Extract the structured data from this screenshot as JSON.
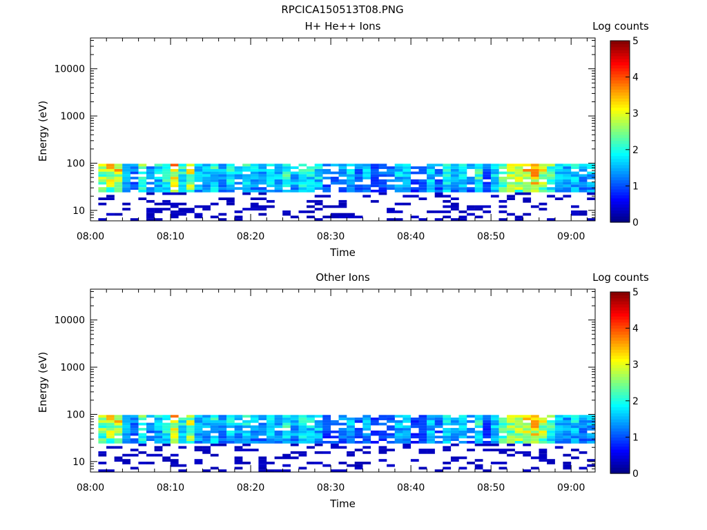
{
  "figure_title": "RPCICA150513T08.PNG",
  "chart_data": [
    {
      "type": "heatmap",
      "title": "H+ He++ Ions",
      "xlabel": "Time",
      "ylabel": "Energy (eV)",
      "x_scale": "time",
      "y_scale": "log",
      "xlim": [
        "08:00",
        "09:03"
      ],
      "ylim": [
        6,
        45000
      ],
      "x_ticks": [
        "08:00",
        "08:10",
        "08:20",
        "08:30",
        "08:40",
        "08:50",
        "09:00"
      ],
      "y_ticks": [
        "10",
        "100",
        "1000",
        "10000"
      ],
      "colorbar": {
        "label": "Log counts",
        "range": [
          0,
          5
        ],
        "ticks": [
          "0",
          "1",
          "2",
          "3",
          "4",
          "5"
        ],
        "colormap": "jet"
      },
      "time_bins": [
        "08:01",
        "08:02",
        "08:03",
        "08:04",
        "08:05",
        "08:06",
        "08:07",
        "08:08",
        "08:09",
        "08:10",
        "08:11",
        "08:12",
        "08:13",
        "08:14",
        "08:15",
        "08:16",
        "08:17",
        "08:18",
        "08:19",
        "08:20",
        "08:21",
        "08:22",
        "08:23",
        "08:24",
        "08:25",
        "08:26",
        "08:27",
        "08:28",
        "08:29",
        "08:30",
        "08:31",
        "08:32",
        "08:33",
        "08:34",
        "08:35",
        "08:36",
        "08:37",
        "08:38",
        "08:39",
        "08:40",
        "08:41",
        "08:42",
        "08:43",
        "08:44",
        "08:45",
        "08:46",
        "08:47",
        "08:48",
        "08:49",
        "08:50",
        "08:51",
        "08:52",
        "08:53",
        "08:54",
        "08:55",
        "08:56",
        "08:57",
        "08:58",
        "08:59",
        "09:00",
        "09:01",
        "09:02"
      ],
      "intensity_profile": [
        2.7,
        3.0,
        3.1,
        1.5,
        1.3,
        2.4,
        1.4,
        1.8,
        2.2,
        3.3,
        2.1,
        3.0,
        1.8,
        1.7,
        2.0,
        1.6,
        1.9,
        1.8,
        2.0,
        1.6,
        1.5,
        2.0,
        1.8,
        2.2,
        1.7,
        2.1,
        2.0,
        1.9,
        1.2,
        1.3,
        1.4,
        1.7,
        1.2,
        1.6,
        1.0,
        1.2,
        1.3,
        1.8,
        1.6,
        1.0,
        1.2,
        1.8,
        1.3,
        2.0,
        1.5,
        2.0,
        1.4,
        2.2,
        1.1,
        1.8,
        2.7,
        3.0,
        3.1,
        3.3,
        3.5,
        3.2,
        2.4,
        1.8,
        1.6,
        1.9,
        1.6,
        1.7
      ]
    },
    {
      "type": "heatmap",
      "title": "Other Ions",
      "xlabel": "Time",
      "ylabel": "Energy (eV)",
      "x_scale": "time",
      "y_scale": "log",
      "xlim": [
        "08:00",
        "09:03"
      ],
      "ylim": [
        6,
        45000
      ],
      "x_ticks": [
        "08:00",
        "08:10",
        "08:20",
        "08:30",
        "08:40",
        "08:50",
        "09:00"
      ],
      "y_ticks": [
        "10",
        "100",
        "1000",
        "10000"
      ],
      "colorbar": {
        "label": "Log counts",
        "range": [
          0,
          5
        ],
        "ticks": [
          "0",
          "1",
          "2",
          "3",
          "4",
          "5"
        ],
        "colormap": "jet"
      },
      "time_bins": [
        "08:01",
        "08:02",
        "08:03",
        "08:04",
        "08:05",
        "08:06",
        "08:07",
        "08:08",
        "08:09",
        "08:10",
        "08:11",
        "08:12",
        "08:13",
        "08:14",
        "08:15",
        "08:16",
        "08:17",
        "08:18",
        "08:19",
        "08:20",
        "08:21",
        "08:22",
        "08:23",
        "08:24",
        "08:25",
        "08:26",
        "08:27",
        "08:28",
        "08:29",
        "08:30",
        "08:31",
        "08:32",
        "08:33",
        "08:34",
        "08:35",
        "08:36",
        "08:37",
        "08:38",
        "08:39",
        "08:40",
        "08:41",
        "08:42",
        "08:43",
        "08:44",
        "08:45",
        "08:46",
        "08:47",
        "08:48",
        "08:49",
        "08:50",
        "08:51",
        "08:52",
        "08:53",
        "08:54",
        "08:55",
        "08:56",
        "08:57",
        "08:58",
        "08:59",
        "09:00",
        "09:01",
        "09:02"
      ],
      "intensity_profile": [
        2.6,
        2.9,
        3.0,
        1.5,
        1.3,
        2.3,
        1.3,
        1.7,
        2.1,
        3.2,
        2.0,
        2.9,
        1.7,
        1.6,
        1.9,
        1.5,
        1.8,
        1.7,
        1.9,
        1.5,
        1.4,
        1.9,
        1.7,
        2.1,
        1.6,
        2.0,
        1.9,
        1.8,
        1.0,
        1.2,
        1.3,
        1.6,
        1.0,
        1.5,
        0.9,
        1.1,
        1.2,
        1.7,
        1.5,
        0.9,
        1.1,
        1.7,
        1.2,
        1.9,
        1.4,
        1.9,
        1.3,
        2.1,
        1.0,
        1.7,
        2.6,
        2.9,
        3.0,
        3.2,
        3.4,
        3.1,
        2.3,
        1.7,
        1.5,
        1.8,
        1.5,
        1.6
      ]
    }
  ]
}
